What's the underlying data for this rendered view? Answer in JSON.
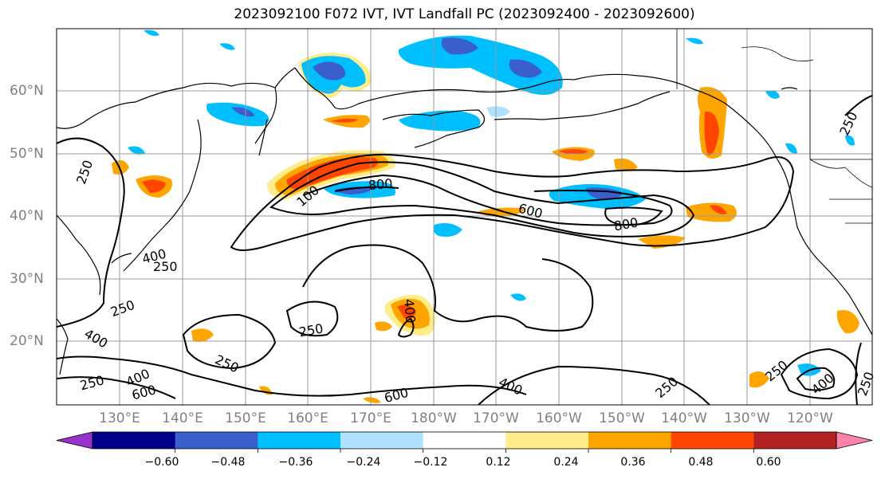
{
  "title": "2023092100 F072 IVT, IVT Landfall PC (2023092400 - 2023092600)",
  "latitude_labels": [
    "60°N",
    "50°N",
    "40°N",
    "30°N",
    "20°N"
  ],
  "longitude_labels": [
    "130°E",
    "140°E",
    "150°E",
    "160°E",
    "170°E",
    "180°W",
    "170°W",
    "160°W",
    "150°W",
    "140°W",
    "130°W",
    "120°W"
  ],
  "contour_labels": [
    "250",
    "250",
    "250",
    "250",
    "250",
    "250",
    "250",
    "250",
    "250",
    "250",
    "400",
    "400",
    "400",
    "400",
    "400",
    "400",
    "600",
    "600",
    "600",
    "800",
    "800",
    "100"
  ],
  "colorbar": {
    "tick_labels": [
      "−0.60",
      "−0.48",
      "−0.36",
      "−0.24",
      "−0.12",
      "0.12",
      "0.24",
      "0.36",
      "0.48",
      "0.60"
    ],
    "colors": [
      "#9932CC",
      "#00008B",
      "#3A5FCD",
      "#00BFFF",
      "#B0E2FF",
      "#FFFFFF",
      "#FFEC8B",
      "#FFA500",
      "#FF4500",
      "#B22222",
      "#FF82AB"
    ]
  }
}
